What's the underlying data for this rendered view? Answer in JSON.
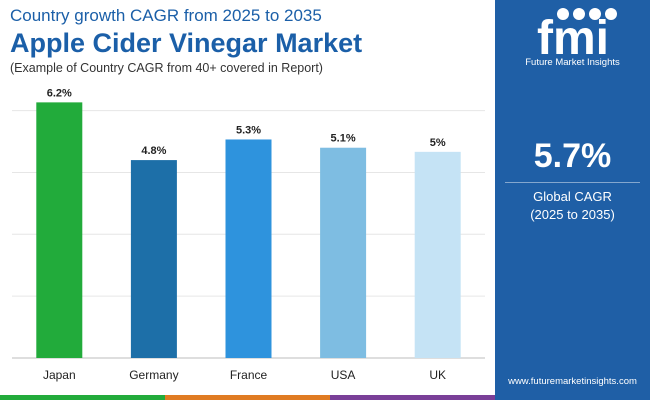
{
  "header": {
    "subtitle": "Country growth CAGR from 2025 to 2035",
    "title": "Apple Cider Vinegar Market",
    "note": "(Example of Country CAGR from 40+ covered in Report)"
  },
  "side_panel": {
    "logo_text": "fmi",
    "logo_caption": "Future Market Insights",
    "highlight_value": "5.7%",
    "highlight_label": "Global CAGR",
    "highlight_range": "(2025 to 2035)",
    "website": "www.futuremarketinsights.com"
  },
  "chart_data": {
    "type": "bar",
    "categories": [
      "Japan",
      "Germany",
      "France",
      "USA",
      "UK"
    ],
    "values": [
      6.2,
      4.8,
      5.3,
      5.1,
      5.0
    ],
    "data_labels": [
      "6.2%",
      "4.8%",
      "5.3%",
      "5.1%",
      "5%"
    ],
    "colors": [
      "#22ab3b",
      "#1d6fa8",
      "#2e93dd",
      "#7ebde2",
      "#c5e3f5"
    ],
    "ylim": [
      0,
      6.5
    ],
    "grid": true,
    "title": "",
    "xlabel": "",
    "ylabel": ""
  },
  "colors": {
    "title": "#1b5fa8",
    "panel": "#1f5fa6",
    "bottom_bar": [
      "#22ab3b",
      "#e07b22",
      "#7a3f98",
      "#1f5fa6"
    ]
  }
}
